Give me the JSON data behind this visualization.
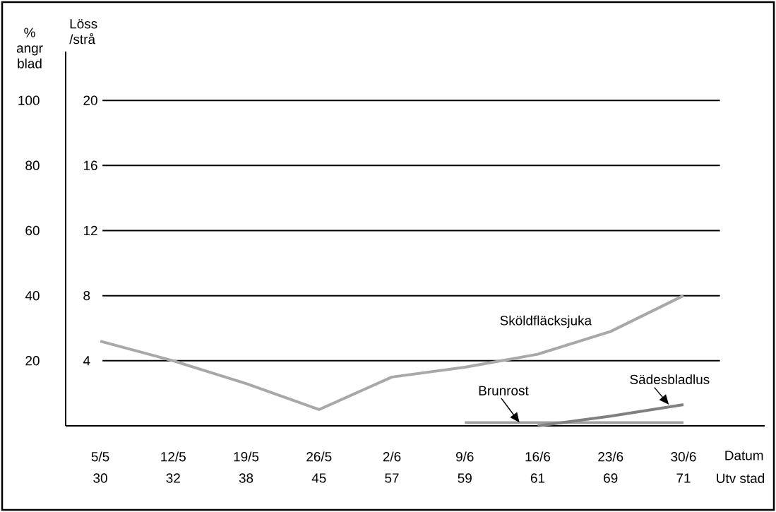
{
  "chart_data": {
    "type": "line",
    "categories": [
      "5/5",
      "12/5",
      "19/5",
      "26/5",
      "2/6",
      "9/6",
      "16/6",
      "23/6",
      "30/6"
    ],
    "series": [
      {
        "name": "Sköldfläcksjuka",
        "color": "#a8a8a8",
        "values": [
          26,
          20,
          13,
          5,
          15,
          18,
          22,
          29,
          40
        ]
      },
      {
        "name": "Brunrost",
        "color": "#a0a0a0",
        "values": [
          null,
          null,
          null,
          null,
          null,
          1,
          1,
          1,
          1
        ]
      },
      {
        "name": "Sädesbladlus",
        "color": "#808080",
        "axis": "y2",
        "values": [
          null,
          null,
          null,
          null,
          null,
          null,
          0,
          0.6,
          1.3
        ]
      }
    ],
    "xlabel": "Datum",
    "ylabel": "% angr blad",
    "y2label": "Löss /strå",
    "ylim": [
      0,
      115
    ],
    "yticks": [
      20,
      40,
      60,
      80,
      100
    ],
    "y2lim": [
      0,
      20
    ],
    "y2ticks": [
      4,
      8,
      12,
      16,
      20
    ],
    "grid": "y",
    "marker": "none",
    "line_style": "solid",
    "annotations": [
      "30",
      "32",
      "38",
      "45",
      "57",
      "59",
      "61",
      "69",
      "71",
      "Utv stad"
    ]
  }
}
